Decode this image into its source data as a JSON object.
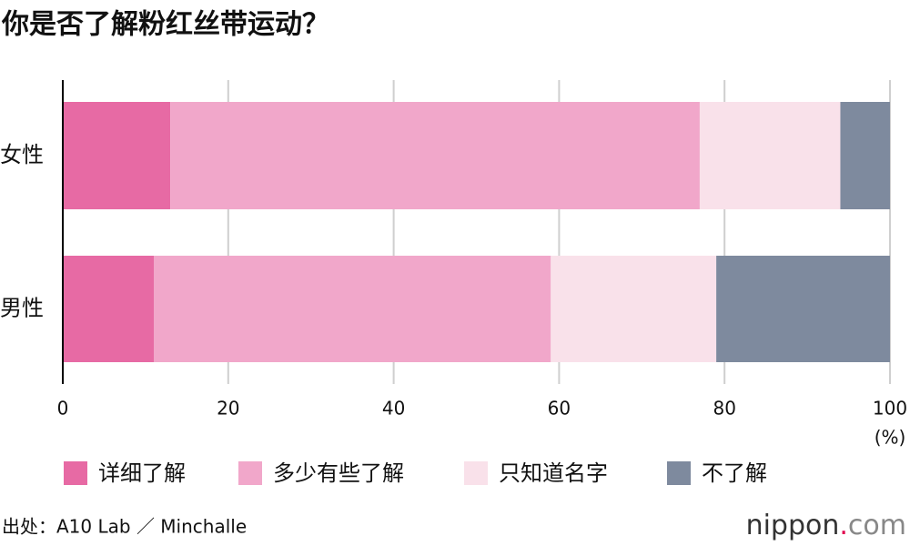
{
  "chart_data": {
    "type": "stacked_barh",
    "title": "你是否了解粉红丝带运动？",
    "categories": [
      "女性",
      "男性"
    ],
    "series": [
      {
        "name": "详细了解",
        "color": "#e76aa4",
        "values": [
          13,
          11
        ]
      },
      {
        "name": "多少有些了解",
        "color": "#f1a7ca",
        "values": [
          64,
          48
        ]
      },
      {
        "name": "只知道名字",
        "color": "#f9e1ea",
        "values": [
          17,
          20
        ]
      },
      {
        "name": "不了解",
        "color": "#7e8a9e",
        "values": [
          6,
          21
        ]
      }
    ],
    "xlim": [
      0,
      100
    ],
    "xticks": [
      0,
      20,
      40,
      60,
      80,
      100
    ],
    "x_unit": "(%)",
    "grid": true,
    "source": "出处：A10 Lab ／ Minchalle",
    "logo": {
      "name": "nippon",
      "dot": ".",
      "domain": "com"
    }
  }
}
